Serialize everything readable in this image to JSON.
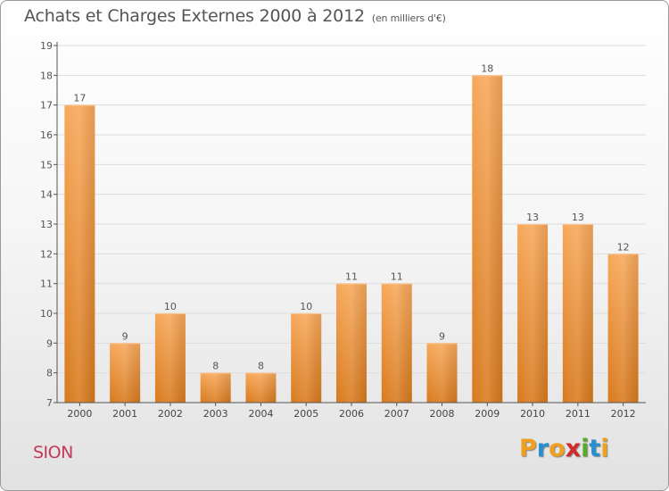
{
  "title": "Achats et Charges Externes 2000 à 2012",
  "unit": "(en milliers d'€)",
  "commune": "SION",
  "logo": {
    "text": "Proxiti",
    "letters": [
      {
        "char": "P",
        "color": "#f0a020"
      },
      {
        "char": "r",
        "color": "#2a8fd0"
      },
      {
        "char": "o",
        "color": "#f0a020"
      },
      {
        "char": "x",
        "color": "#d02a2a"
      },
      {
        "char": "i",
        "color": "#5aaa2a"
      },
      {
        "char": "t",
        "color": "#2a8fd0"
      },
      {
        "char": "i",
        "color": "#f0a020"
      }
    ]
  },
  "colors": {
    "bar_top": "#f7a85a",
    "bar_bottom": "#d87a1e",
    "axis": "#555555",
    "grid": "#dddddd"
  },
  "chart_data": {
    "type": "bar",
    "categories": [
      "2000",
      "2001",
      "2002",
      "2003",
      "2004",
      "2005",
      "2006",
      "2007",
      "2008",
      "2009",
      "2010",
      "2011",
      "2012"
    ],
    "values": [
      17,
      9,
      10,
      8,
      8,
      10,
      11,
      11,
      9,
      18,
      13,
      13,
      12
    ],
    "ylim": [
      7,
      19
    ],
    "yticks": [
      7,
      8,
      9,
      10,
      11,
      12,
      13,
      14,
      15,
      16,
      17,
      18,
      19
    ],
    "grid": true,
    "data_labels": true
  }
}
